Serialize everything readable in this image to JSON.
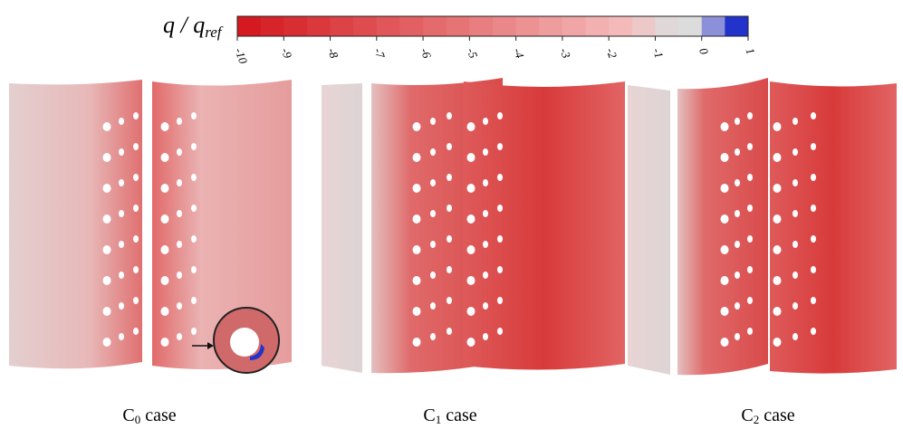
{
  "colorbar": {
    "label": "q / q",
    "label_sub": "ref",
    "range": [
      -10,
      1
    ],
    "ticks": [
      -10,
      -9,
      -8,
      -7,
      -6,
      -5,
      -4,
      -3,
      -2,
      -1,
      0,
      1
    ],
    "colors": [
      "#d41a20",
      "#d6242a",
      "#d82e33",
      "#da383c",
      "#dc4246",
      "#de4c4f",
      "#e05659",
      "#e26062",
      "#e46a6c",
      "#e67475",
      "#e87e7f",
      "#ea8889",
      "#ec9293",
      "#ee9c9c",
      "#f0a6a6",
      "#f2b0b0",
      "#f4baba",
      "#ecc8c8",
      "#e0d8d8",
      "#dcdcdc",
      "#8c90d8",
      "#2233cc"
    ]
  },
  "panels": [
    {
      "caption": "C",
      "caption_sub": "0",
      "caption_suffix": " case"
    },
    {
      "caption": "C",
      "caption_sub": "1",
      "caption_suffix": " case"
    },
    {
      "caption": "C",
      "caption_sub": "2",
      "caption_suffix": " case"
    }
  ]
}
